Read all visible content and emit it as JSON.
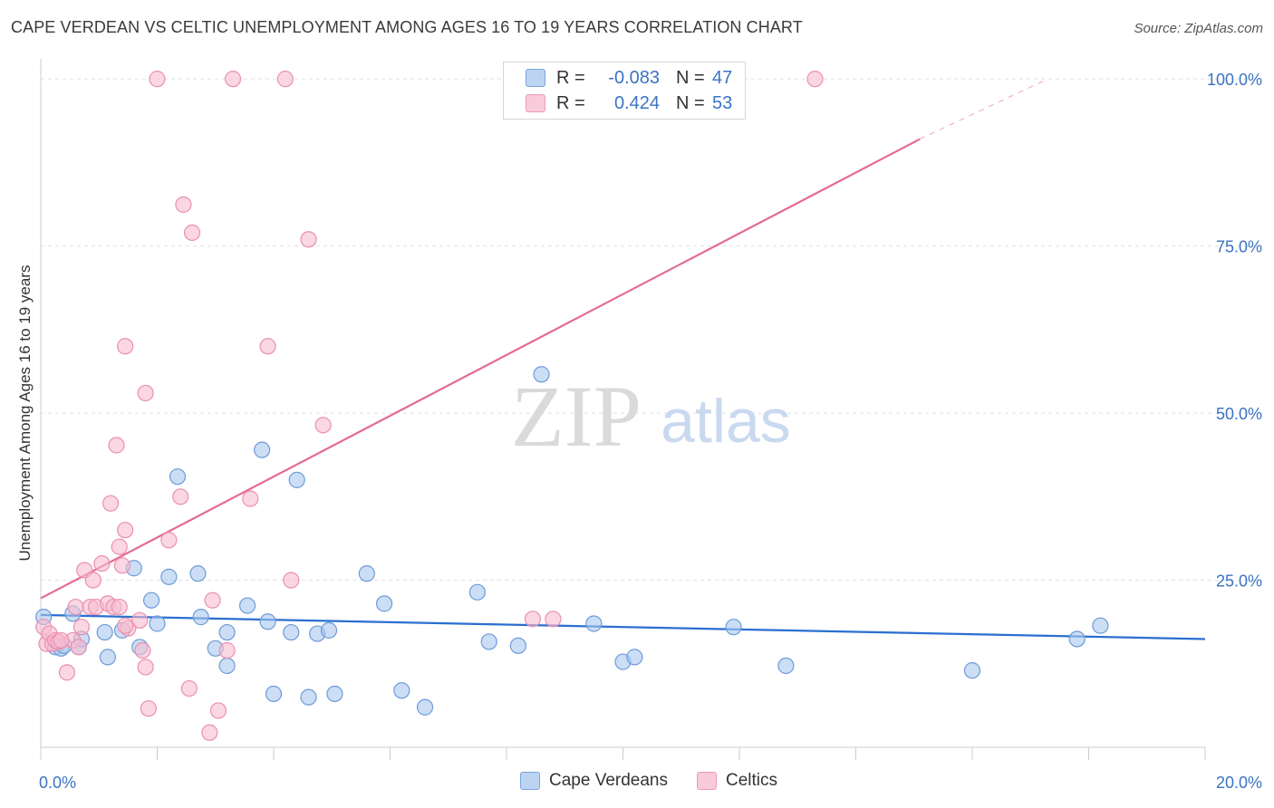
{
  "title": "CAPE VERDEAN VS CELTIC UNEMPLOYMENT AMONG AGES 16 TO 19 YEARS CORRELATION CHART",
  "source": "Source: ZipAtlas.com",
  "watermark": {
    "zip": "ZIP",
    "atlas": "atlas"
  },
  "legend_top": [
    {
      "r_label": "R =",
      "r_value": "-0.083",
      "n_label": "N =",
      "n_value": "47"
    },
    {
      "r_label": "R =",
      "r_value": "0.424",
      "n_label": "N =",
      "n_value": "53"
    }
  ],
  "legend_bottom": {
    "series1": "Cape Verdeans",
    "series2": "Celtics"
  },
  "colors": {
    "blue_fill": "#a9c8ee",
    "blue_stroke": "#6d9bd8",
    "blue_line": "#2a6fd0",
    "pink_fill": "#f7bdd0",
    "pink_stroke": "#eb8fb0",
    "pink_line": "#e46a95",
    "axis_text": "#3a73c4",
    "grid": "#e1e1e1"
  },
  "chart_data": {
    "type": "scatter",
    "title": "CAPE VERDEAN VS CELTIC UNEMPLOYMENT AMONG AGES 16 TO 19 YEARS CORRELATION CHART",
    "xlabel": "",
    "ylabel": "Unemployment Among Ages 16 to 19 years",
    "xlim": [
      0,
      20
    ],
    "ylim": [
      0,
      103
    ],
    "x_tick_labels": [
      "0.0%",
      "20.0%"
    ],
    "y_ticks": [
      25,
      50,
      75,
      100
    ],
    "y_tick_labels": [
      "25.0%",
      "50.0%",
      "75.0%",
      "100.0%"
    ],
    "grid": true,
    "legend_position": "top-center",
    "series": [
      {
        "name": "Cape Verdeans",
        "color": "#a9c8ee",
        "trend": {
          "x0": 0,
          "y0": 19.8,
          "x1": 20,
          "y1": 16.2
        },
        "points": [
          [
            0.05,
            19.5
          ],
          [
            0.25,
            15.0
          ],
          [
            0.35,
            14.8
          ],
          [
            0.55,
            20.0
          ],
          [
            0.65,
            15.0
          ],
          [
            0.7,
            16.2
          ],
          [
            1.1,
            17.2
          ],
          [
            1.15,
            13.5
          ],
          [
            1.4,
            17.5
          ],
          [
            1.6,
            26.8
          ],
          [
            1.7,
            15.0
          ],
          [
            1.9,
            22.0
          ],
          [
            2.0,
            18.5
          ],
          [
            2.2,
            25.5
          ],
          [
            2.35,
            40.5
          ],
          [
            2.7,
            26.0
          ],
          [
            2.75,
            19.5
          ],
          [
            3.0,
            14.8
          ],
          [
            3.2,
            17.2
          ],
          [
            3.2,
            12.2
          ],
          [
            3.55,
            21.2
          ],
          [
            3.8,
            44.5
          ],
          [
            3.9,
            18.8
          ],
          [
            4.0,
            8.0
          ],
          [
            4.3,
            17.2
          ],
          [
            4.4,
            40.0
          ],
          [
            4.6,
            7.5
          ],
          [
            4.75,
            17.0
          ],
          [
            4.95,
            17.5
          ],
          [
            5.05,
            8.0
          ],
          [
            5.6,
            26.0
          ],
          [
            5.9,
            21.5
          ],
          [
            6.2,
            8.5
          ],
          [
            6.6,
            6.0
          ],
          [
            7.5,
            23.2
          ],
          [
            7.7,
            15.8
          ],
          [
            8.2,
            15.2
          ],
          [
            8.6,
            55.8
          ],
          [
            9.5,
            18.5
          ],
          [
            10.0,
            12.8
          ],
          [
            10.2,
            13.5
          ],
          [
            11.9,
            18.0
          ],
          [
            12.8,
            12.2
          ],
          [
            16.0,
            11.5
          ],
          [
            17.8,
            16.2
          ],
          [
            18.2,
            18.2
          ],
          [
            0.4,
            15.2
          ]
        ]
      },
      {
        "name": "Celtics",
        "color": "#f7bdd0",
        "trend": {
          "x0": 0,
          "y0": 22.3,
          "x1": 15.1,
          "y1": 91.0,
          "dash_x1": 17.3,
          "dash_y1": 100.0
        },
        "points": [
          [
            0.05,
            18.0
          ],
          [
            0.1,
            15.5
          ],
          [
            0.15,
            17.0
          ],
          [
            0.2,
            15.5
          ],
          [
            0.25,
            16.0
          ],
          [
            0.3,
            15.8
          ],
          [
            0.45,
            11.2
          ],
          [
            0.55,
            16.0
          ],
          [
            0.6,
            21.0
          ],
          [
            0.7,
            18.0
          ],
          [
            0.75,
            26.5
          ],
          [
            0.85,
            21.0
          ],
          [
            0.9,
            25.0
          ],
          [
            0.95,
            21.0
          ],
          [
            1.05,
            27.5
          ],
          [
            1.15,
            21.5
          ],
          [
            1.2,
            36.5
          ],
          [
            1.25,
            21.0
          ],
          [
            1.3,
            45.2
          ],
          [
            1.35,
            30.0
          ],
          [
            1.4,
            27.2
          ],
          [
            1.45,
            32.5
          ],
          [
            1.5,
            17.8
          ],
          [
            1.45,
            18.2
          ],
          [
            1.45,
            60.0
          ],
          [
            1.7,
            19.0
          ],
          [
            1.8,
            53.0
          ],
          [
            1.75,
            14.5
          ],
          [
            1.8,
            12.0
          ],
          [
            1.85,
            5.8
          ],
          [
            2.0,
            100.0
          ],
          [
            2.2,
            31.0
          ],
          [
            2.4,
            37.5
          ],
          [
            2.45,
            81.2
          ],
          [
            2.55,
            8.8
          ],
          [
            2.6,
            77.0
          ],
          [
            2.9,
            2.2
          ],
          [
            2.95,
            22.0
          ],
          [
            3.05,
            5.5
          ],
          [
            3.2,
            14.5
          ],
          [
            3.3,
            100.0
          ],
          [
            3.6,
            37.2
          ],
          [
            3.9,
            60.0
          ],
          [
            4.2,
            100.0
          ],
          [
            4.3,
            25.0
          ],
          [
            4.6,
            76.0
          ],
          [
            4.85,
            48.2
          ],
          [
            8.45,
            19.2
          ],
          [
            8.8,
            19.2
          ],
          [
            13.3,
            100.0
          ],
          [
            0.35,
            16.0
          ],
          [
            0.65,
            15.0
          ],
          [
            1.35,
            21.0
          ]
        ]
      }
    ]
  }
}
